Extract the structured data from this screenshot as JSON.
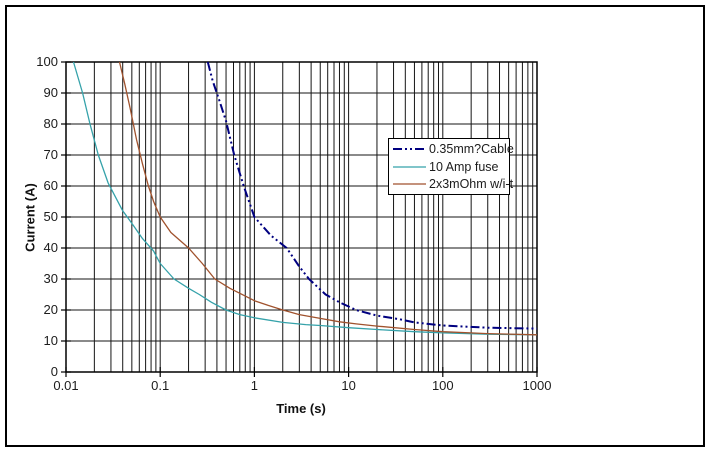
{
  "chart_data": {
    "type": "line",
    "title": "",
    "xlabel": "Time (s)",
    "ylabel": "Current (A)",
    "x_scale": "log",
    "xlim": [
      0.01,
      1000
    ],
    "ylim": [
      0,
      100
    ],
    "x_ticks": [
      "0.01",
      "0.1",
      "1",
      "10",
      "100",
      "1000"
    ],
    "y_ticks": [
      "0",
      "10",
      "20",
      "30",
      "40",
      "50",
      "60",
      "70",
      "80",
      "90",
      "100"
    ],
    "grid": "black major horizontal lines every 10 A; black vertical log gridlines at every minor decade step",
    "legend_position": "inside-upper-right",
    "background_color": "#ffffff",
    "frame_color": "#000000",
    "series": [
      {
        "name": "0.35mm?Cable",
        "color": "#000080",
        "line_style": "dash-dot-dot",
        "line_width": 2,
        "points": [
          [
            0.32,
            100
          ],
          [
            0.36,
            94
          ],
          [
            0.42,
            88
          ],
          [
            0.5,
            81
          ],
          [
            0.61,
            70
          ],
          [
            0.77,
            60
          ],
          [
            1.0,
            50
          ],
          [
            1.5,
            44
          ],
          [
            2.2,
            40
          ],
          [
            3.0,
            34
          ],
          [
            3.8,
            30
          ],
          [
            5.7,
            25
          ],
          [
            8,
            22.5
          ],
          [
            12,
            20
          ],
          [
            20,
            18.2
          ],
          [
            35,
            17
          ],
          [
            50,
            16
          ],
          [
            100,
            15
          ],
          [
            300,
            14.3
          ],
          [
            1000,
            14
          ]
        ]
      },
      {
        "name": "10 Amp fuse",
        "color": "#35a2aa",
        "line_style": "solid",
        "line_width": 1.3,
        "points": [
          [
            0.012,
            100
          ],
          [
            0.015,
            90
          ],
          [
            0.018,
            80
          ],
          [
            0.022,
            70
          ],
          [
            0.028,
            61
          ],
          [
            0.04,
            52
          ],
          [
            0.05,
            48
          ],
          [
            0.065,
            43
          ],
          [
            0.085,
            39
          ],
          [
            0.1,
            35
          ],
          [
            0.14,
            30
          ],
          [
            0.2,
            27
          ],
          [
            0.26,
            25
          ],
          [
            0.35,
            22.5
          ],
          [
            0.5,
            20
          ],
          [
            0.7,
            18.5
          ],
          [
            1,
            17.5
          ],
          [
            2,
            16
          ],
          [
            3.5,
            15.3
          ],
          [
            5,
            15
          ],
          [
            10,
            14.3
          ],
          [
            20,
            13.7
          ],
          [
            50,
            13
          ],
          [
            100,
            12.6
          ],
          [
            300,
            12.2
          ],
          [
            1000,
            12
          ]
        ]
      },
      {
        "name": "2x3mOhm w/i-t",
        "color": "#a0522d",
        "line_style": "solid",
        "line_width": 1.3,
        "points": [
          [
            0.037,
            100
          ],
          [
            0.042,
            93
          ],
          [
            0.048,
            85
          ],
          [
            0.056,
            75
          ],
          [
            0.065,
            67
          ],
          [
            0.075,
            60
          ],
          [
            0.085,
            55
          ],
          [
            0.1,
            50
          ],
          [
            0.13,
            45
          ],
          [
            0.2,
            40
          ],
          [
            0.28,
            35
          ],
          [
            0.38,
            30
          ],
          [
            0.55,
            27
          ],
          [
            0.8,
            24.5
          ],
          [
            1,
            23
          ],
          [
            1.4,
            21.5
          ],
          [
            2,
            20
          ],
          [
            3,
            18.5
          ],
          [
            5,
            17.3
          ],
          [
            8,
            16.2
          ],
          [
            12,
            15.5
          ],
          [
            20,
            14.8
          ],
          [
            50,
            13.7
          ],
          [
            100,
            13
          ],
          [
            300,
            12.4
          ],
          [
            1000,
            12
          ]
        ]
      }
    ]
  }
}
